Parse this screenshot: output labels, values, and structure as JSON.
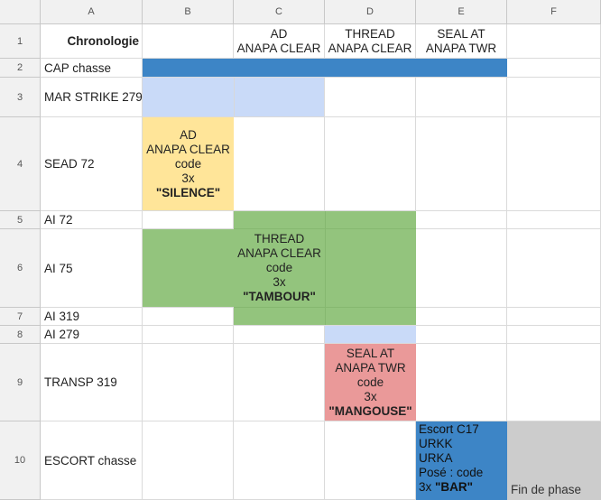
{
  "columns": [
    "A",
    "B",
    "C",
    "D",
    "E",
    "F"
  ],
  "rows": [
    "1",
    "2",
    "3",
    "4",
    "5",
    "6",
    "7",
    "8",
    "9",
    "10"
  ],
  "header_row": {
    "a1": "Chronologie",
    "c1_line1": "AD",
    "c1_line2": "ANAPA CLEAR",
    "d1_line1": "THREAD",
    "d1_line2": "ANAPA CLEAR",
    "e1_line1": "SEAL AT",
    "e1_line2": "ANAPA TWR"
  },
  "row_labels": [
    "CAP chasse",
    "MAR STRIKE 279",
    "SEAD 72",
    "AI 72",
    "AI 75",
    "AI 319",
    "AI 279",
    "TRANSP 319",
    "ESCORT chasse"
  ],
  "blocks": {
    "ad": {
      "line1": "AD",
      "line2": "ANAPA CLEAR",
      "line3": "code",
      "line4": "3x",
      "code": "\"SILENCE\""
    },
    "thread": {
      "line1": "THREAD",
      "line2": "ANAPA CLEAR",
      "line3": "code",
      "line4": "3x",
      "code": "\"TAMBOUR\""
    },
    "seal": {
      "line1": "SEAL AT",
      "line2": "ANAPA TWR",
      "line3": "code",
      "line4": "3x",
      "code": "\"MANGOUSE\""
    },
    "escort": {
      "line1": "Escort C17",
      "line2": "URKK",
      "line3": "URKA",
      "line4": "Posé : code",
      "line5_prefix": "3x ",
      "code": "\"BAR\""
    },
    "fin": "Fin de phase"
  },
  "colors": {
    "blue_dark": "#3d85c6",
    "blue_light": "#c9daf8",
    "yellow": "#ffe599",
    "green": "#93c47d",
    "red": "#ea9999",
    "gray": "#cccccc"
  }
}
